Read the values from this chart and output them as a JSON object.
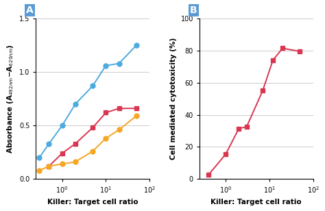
{
  "panel_A": {
    "blue": {
      "x": [
        0.3,
        0.5,
        1.0,
        2.0,
        5.0,
        10.0,
        20.0,
        50.0
      ],
      "y": [
        0.2,
        0.33,
        0.5,
        0.7,
        0.87,
        1.06,
        1.08,
        1.25
      ],
      "color": "#4DAADF",
      "marker": "o",
      "markersize": 5
    },
    "red": {
      "x": [
        0.5,
        1.0,
        2.0,
        5.0,
        10.0,
        20.0,
        50.0
      ],
      "y": [
        0.12,
        0.24,
        0.33,
        0.48,
        0.62,
        0.66,
        0.66
      ],
      "color": "#D93651",
      "marker": "s",
      "markersize": 5
    },
    "orange": {
      "x": [
        0.3,
        0.5,
        1.0,
        2.0,
        5.0,
        10.0,
        20.0,
        50.0
      ],
      "y": [
        0.08,
        0.12,
        0.14,
        0.16,
        0.26,
        0.38,
        0.46,
        0.59
      ],
      "color": "#F5A623",
      "marker": "o",
      "markersize": 5
    },
    "xlabel": "Killer: Target cell ratio",
    "ylim": [
      0,
      1.5
    ],
    "yticks": [
      0,
      0.5,
      1.0,
      1.5
    ],
    "xlim": [
      0.25,
      100
    ],
    "label": "A"
  },
  "panel_B": {
    "red": {
      "x": [
        0.4,
        1.0,
        2.0,
        3.0,
        7.0,
        12.0,
        20.0,
        50.0
      ],
      "y": [
        2.5,
        15.5,
        31.5,
        32.5,
        55.0,
        74.0,
        81.5,
        79.5
      ],
      "color": "#D93651",
      "marker": "s",
      "markersize": 5
    },
    "xlabel": "Killer: Target cell ratio",
    "ylim": [
      0,
      100
    ],
    "yticks": [
      0,
      20,
      40,
      60,
      80,
      100
    ],
    "xlim": [
      0.25,
      100
    ],
    "label": "B"
  },
  "panel_label_fontsize": 10,
  "axis_label_fontsize": 7.5,
  "tick_fontsize": 7,
  "linewidth": 1.4,
  "background_color": "#ffffff",
  "grid_color": "#cccccc",
  "label_box_color": "#5B9BD5",
  "label_text_color": "#ffffff"
}
